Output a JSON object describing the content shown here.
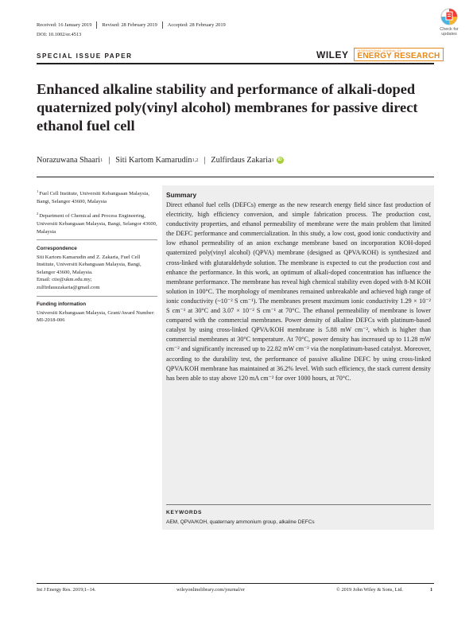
{
  "header": {
    "received": "Received: 16 January 2019",
    "revised": "Revised: 28 February 2019",
    "accepted": "Accepted: 28 February 2019",
    "doi": "DOI: 10.1002/er.4513",
    "crossmark": "Check for updates",
    "section_label": "SPECIAL ISSUE PAPER",
    "publisher": "WILEY",
    "journal_small": "INTERNATIONAL JOURNAL OF",
    "journal_name": "ENERGY RESEARCH",
    "journal_color": "#e8891b"
  },
  "article": {
    "title": "Enhanced alkaline stability and performance of alkali-doped quaternized poly(vinyl alcohol) membranes for passive direct ethanol fuel cell",
    "authors": [
      {
        "name": "Norazuwana Shaari",
        "sup": "1"
      },
      {
        "name": "Siti Kartom Kamarudin",
        "sup": "1,2"
      },
      {
        "name": "Zulfirdaus Zakaria",
        "sup": "1"
      }
    ],
    "orcid_color": "#a6ce39"
  },
  "sidebar": {
    "affiliations": [
      {
        "sup": "1",
        "text": "Fuel Cell Institute, Universiti Kebangsaan Malaysia, Bangi, Selangor 43600, Malaysia"
      },
      {
        "sup": "2",
        "text": "Department of Chemical and Process Engineering, Universiti Kebangsaan Malaysia, Bangi, Selangor 43600, Malaysia"
      }
    ],
    "correspondence_head": "Correspondence",
    "correspondence_text": "Siti Kartom Kamarudin and Z. Zakaria, Fuel Cell Institute, Universiti Kebangsaan Malaysia, Bangi, Selangor 43600, Malaysia.",
    "email_line1": "Email: ctie@ukm.edu.my;",
    "email_line2": "zulfirdauszakaria@gmail.com",
    "funding_head": "Funding information",
    "funding_text": "Universiti Kebangsaan Malaysia, Grant/Award Number: MI-2018-006"
  },
  "summary": {
    "heading": "Summary",
    "text": "Direct ethanol fuel cells (DEFCs) emerge as the new research energy field since fast production of electricity, high efficiency conversion, and simple fabrication process. The production cost, conductivity properties, and ethanol permeability of membrane were the main problem that limited the DEFC performance and commercialization. In this study, a low cost, good ionic conductivity and low ethanol permeability of an anion exchange membrane based on incorporation KOH-doped quaternized poly(vinyl alcohol) (QPVA) membrane (designed as QPVA/KOH) is synthesized and cross-linked with glutaraldehyde solution. The membrane is expected to cut the production cost and enhance the performance. In this work, an optimum of alkali-doped concentration has influence the membrane performance. The membrane has reveal high chemical stability even doped with 8-M KOH solution in 100°C. The morphology of membranes remained unbreakable and achieved high range of ionic conductivity (~10⁻² S cm⁻¹). The membranes present maximum ionic conductivity 1.29 × 10⁻² S cm⁻¹ at 30°C and 3.07 × 10⁻² S cm⁻¹ at 70°C. The ethanol permeability of membrane is lower compared with the commercial membranes. Power density of alkaline DEFCs with platinum-based catalyst by using cross-linked QPVA/KOH membrane is 5.88 mW cm⁻², which is higher than commercial membranes at 30°C temperature. At 70°C, power density has increased up to 11.28 mW cm⁻² and significantly increased up to 22.82 mW cm⁻² via the nonplatinum-based catalyst. Moreover, according to the durability test, the performance of passive alkaline DEFC by using cross-linked QPVA/KOH membrane has maintained at 36.2% level. With such efficiency, the stack current density has been able to stay above 120 mA cm⁻² for over 1000 hours, at 70°C.",
    "keywords_head": "KEYWORDS",
    "keywords_text": "AEM, QPVA/KOH, quaternary ammonium group, alkaline DEFCs"
  },
  "footer": {
    "citation": "Int J Energy Res. 2019;1–14.",
    "url": "wileyonlinelibrary.com/journal/er",
    "copyright": "© 2019 John Wiley & Sons, Ltd.",
    "page": "1"
  }
}
